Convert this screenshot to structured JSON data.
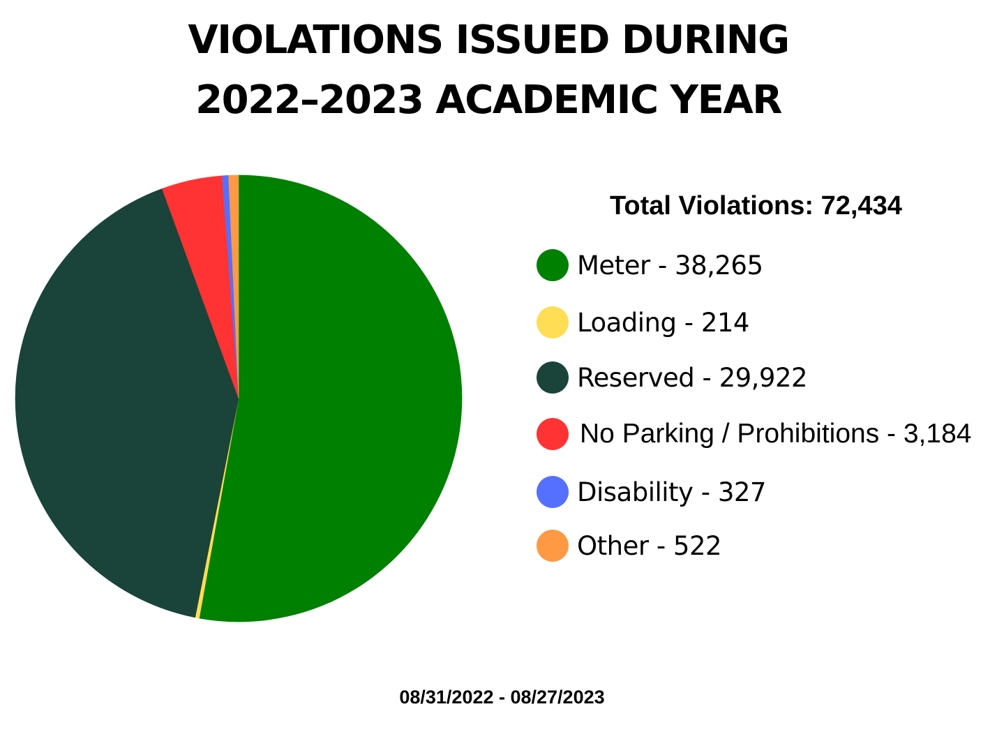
{
  "title": {
    "line1": "VIOLATIONS ISSUED DURING",
    "line2": "2022–2023 ACADEMIC YEAR"
  },
  "total_label": "Total Violations: 72,434",
  "date_range": "08/31/2022 - 08/27/2023",
  "legend": [
    {
      "label": "Meter - 38,265",
      "color": "#008000"
    },
    {
      "label": "Loading - 214",
      "color": "#ffdd55"
    },
    {
      "label": "Reserved - 29,922",
      "color": "#1a433a"
    },
    {
      "label": "No Parking / Prohibitions - 3,184",
      "color": "#ff3333"
    },
    {
      "label": "Disability - 327",
      "color": "#5570ff"
    },
    {
      "label": "Other - 522",
      "color": "#ff9944"
    }
  ],
  "chart_data": {
    "type": "pie",
    "title": "VIOLATIONS ISSUED DURING 2022–2023 ACADEMIC YEAR",
    "total": 72434,
    "categories": [
      "Meter",
      "Loading",
      "Reserved",
      "No Parking / Prohibitions",
      "Disability",
      "Other"
    ],
    "values": [
      38265,
      214,
      29922,
      3184,
      327,
      522
    ],
    "colors": [
      "#008000",
      "#ffdd55",
      "#1a433a",
      "#ff3333",
      "#5570ff",
      "#ff9944"
    ],
    "start": "12 o'clock",
    "direction": "clockwise",
    "legend_position": "right"
  }
}
